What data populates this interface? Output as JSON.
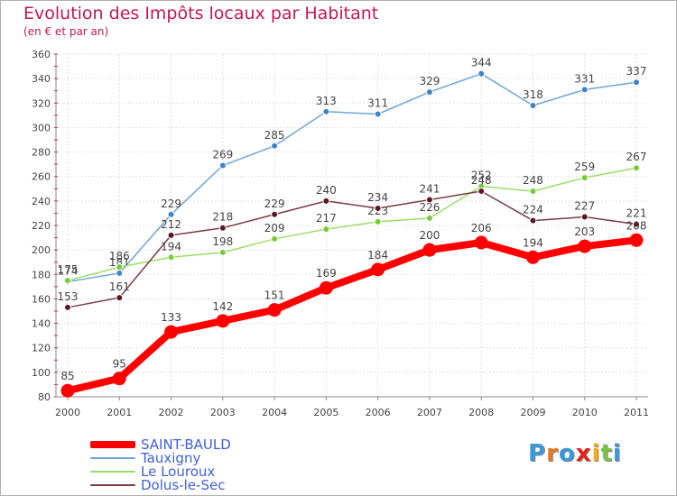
{
  "chart_data": {
    "type": "line",
    "title": "Evolution des Impôts locaux par Habitant",
    "subtitle": "(en € et par an)",
    "xlabel": "",
    "ylabel": "",
    "ylim": [
      80,
      360
    ],
    "yticks": [
      80,
      100,
      120,
      140,
      160,
      180,
      200,
      220,
      240,
      260,
      280,
      300,
      320,
      340,
      360
    ],
    "categories": [
      "2000",
      "2001",
      "2002",
      "2003",
      "2004",
      "2005",
      "2006",
      "2007",
      "2008",
      "2009",
      "2010",
      "2011"
    ],
    "series": [
      {
        "name": "SAINT-BAULD",
        "values": [
          85,
          95,
          133,
          142,
          151,
          169,
          184,
          200,
          206,
          194,
          203,
          208
        ],
        "color": "#ff0000",
        "marker": "#ff0000",
        "bold": true
      },
      {
        "name": "Tauxigny",
        "values": [
          174,
          181,
          229,
          269,
          285,
          313,
          311,
          329,
          344,
          318,
          331,
          337
        ],
        "color": "#6ea5d8",
        "marker": "#3f84c8",
        "bold": false
      },
      {
        "name": "Le Louroux",
        "values": [
          175,
          186,
          194,
          198,
          209,
          217,
          223,
          226,
          252,
          248,
          259,
          267
        ],
        "color": "#99dd66",
        "marker": "#77cc33",
        "bold": false
      },
      {
        "name": "Dolus-le-Sec",
        "values": [
          153,
          161,
          212,
          218,
          229,
          240,
          234,
          241,
          248,
          224,
          227,
          221
        ],
        "color": "#7a3a42",
        "marker": "#5a1820",
        "bold": false
      }
    ]
  },
  "brand": {
    "logo_letters": [
      "P",
      "r",
      "o",
      "x",
      "i",
      "t",
      "i"
    ],
    "logo_colors": [
      "#3a9ad9",
      "#e87722",
      "#3a9ad9",
      "#e2231a",
      "#f7a81b",
      "#7ac143",
      "#3a9ad9"
    ]
  }
}
